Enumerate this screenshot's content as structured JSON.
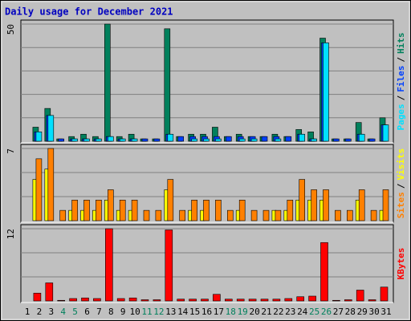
{
  "title": "Daily usage for December 2021",
  "chart_data": [
    {
      "type": "bar",
      "ylim": [
        0,
        50
      ],
      "yticks": [
        50
      ],
      "legend_separator": "/",
      "series": [
        {
          "name": "Hits",
          "color": "#00805c",
          "values": [
            0,
            6,
            14,
            1,
            2,
            3,
            2,
            50,
            2,
            3,
            1,
            1,
            48,
            2,
            3,
            3,
            6,
            2,
            3,
            2,
            2,
            3,
            2,
            5,
            4,
            44,
            1,
            1,
            8,
            1,
            10
          ]
        },
        {
          "name": "Files",
          "color": "#0040ff",
          "values": [
            0,
            4,
            11,
            1,
            1,
            1,
            1,
            2,
            1,
            1,
            1,
            1,
            3,
            2,
            2,
            2,
            2,
            2,
            2,
            2,
            2,
            2,
            2,
            3,
            1,
            42,
            1,
            1,
            3,
            1,
            7
          ]
        },
        {
          "name": "Pages",
          "color": "#00e0ff",
          "values": [
            0,
            4,
            11,
            0,
            1,
            1,
            1,
            2,
            1,
            1,
            0,
            0,
            3,
            0,
            1,
            1,
            1,
            0,
            1,
            1,
            0,
            1,
            0,
            3,
            1,
            42,
            0,
            0,
            3,
            0,
            7
          ]
        }
      ]
    },
    {
      "type": "bar",
      "ylim": [
        0,
        7
      ],
      "yticks": [
        7
      ],
      "legend_separator": "/",
      "series": [
        {
          "name": "Visits",
          "color": "#ffff00",
          "values": [
            0,
            4,
            5,
            0,
            1,
            1,
            1,
            2,
            1,
            1,
            0,
            0,
            3,
            0,
            1,
            1,
            0,
            0,
            1,
            0,
            0,
            1,
            1,
            2,
            2,
            2,
            0,
            0,
            2,
            0,
            1
          ]
        },
        {
          "name": "Sites",
          "color": "#ff8000",
          "values": [
            0,
            6,
            7,
            1,
            2,
            2,
            2,
            3,
            2,
            2,
            1,
            1,
            4,
            1,
            2,
            2,
            2,
            1,
            2,
            1,
            1,
            1,
            2,
            4,
            3,
            3,
            1,
            1,
            3,
            1,
            3
          ]
        }
      ]
    },
    {
      "type": "bar",
      "ylim": [
        0,
        12
      ],
      "yticks": [
        12
      ],
      "categories": [
        "1",
        "2",
        "3",
        "4",
        "5",
        "6",
        "7",
        "8",
        "9",
        "10",
        "11",
        "12",
        "13",
        "14",
        "15",
        "16",
        "17",
        "18",
        "19",
        "20",
        "21",
        "22",
        "23",
        "24",
        "25",
        "26",
        "27",
        "28",
        "29",
        "30",
        "31"
      ],
      "category_label_colors": [
        "#000",
        "#000",
        "#000",
        "#00805c",
        "#00805c",
        "#000",
        "#000",
        "#000",
        "#000",
        "#000",
        "#00805c",
        "#00805c",
        "#000",
        "#000",
        "#000",
        "#000",
        "#000",
        "#00805c",
        "#00805c",
        "#000",
        "#000",
        "#000",
        "#000",
        "#000",
        "#00805c",
        "#00805c",
        "#000",
        "#000",
        "#000",
        "#000",
        "#000"
      ],
      "series": [
        {
          "name": "KBytes",
          "color": "#ff0000",
          "values": [
            0,
            1.3,
            3,
            0.1,
            0.4,
            0.5,
            0.4,
            12,
            0.4,
            0.5,
            0.2,
            0.2,
            11.8,
            0.3,
            0.3,
            0.3,
            1.1,
            0.3,
            0.3,
            0.3,
            0.3,
            0.3,
            0.4,
            0.7,
            0.8,
            9.7,
            0.1,
            0.2,
            1.8,
            0.2,
            2.3
          ]
        }
      ]
    }
  ]
}
